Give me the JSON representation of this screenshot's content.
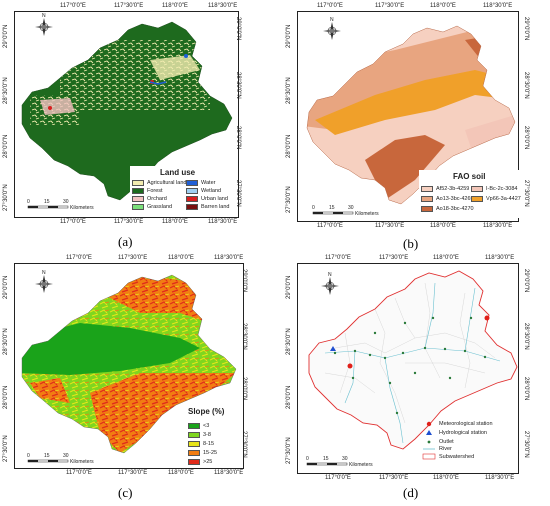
{
  "panels": [
    {
      "label": "(a)",
      "top_ticks": [
        "117°0'0\"E",
        "117°30'0\"E",
        "118°0'0\"E",
        "118°30'0\"E"
      ],
      "left_ticks": [
        "29°0'0\"N",
        "28°30'0\"N",
        "28°0'0\"N",
        "27°30'0\"N"
      ],
      "legend_title": "Land use",
      "legend_items": [
        {
          "label": "Agricultural land",
          "color": "#f3ecb0"
        },
        {
          "label": "Water",
          "color": "#1f5fd6"
        },
        {
          "label": "Forest",
          "color": "#1e6a1e"
        },
        {
          "label": "Wetland",
          "color": "#9fd0f2"
        },
        {
          "label": "Orchard",
          "color": "#f4c2c2"
        },
        {
          "label": "Urban land",
          "color": "#d81e1e"
        },
        {
          "label": "Grassland",
          "color": "#7be07b"
        },
        {
          "label": "Barren land",
          "color": "#7a1010"
        }
      ]
    },
    {
      "label": "(b)",
      "top_ticks": [
        "117°0'0\"E",
        "117°30'0\"E",
        "118°0'0\"E",
        "118°30'0\"E"
      ],
      "left_ticks": [
        "29°0'0\"N",
        "28°30'0\"N",
        "28°0'0\"N",
        "27°30'0\"N"
      ],
      "legend_title": "FAO  soil",
      "legend_items": [
        {
          "label": "Af52-3b-4259",
          "color": "#f6d0c0"
        },
        {
          "label": "I-Bc-2c-3084",
          "color": "#f3c6b8"
        },
        {
          "label": "Ao13-3bc-4269",
          "color": "#e8a580"
        },
        {
          "label": "Vp66-3a-4427",
          "color": "#f0a02a"
        },
        {
          "label": "Ao18-3bc-4270",
          "color": "#c8673c"
        }
      ]
    },
    {
      "label": "(c)",
      "top_ticks": [
        "117°0'0\"E",
        "117°30'0\"E",
        "118°0'0\"E",
        "118°30'0\"E"
      ],
      "left_ticks": [
        "29°0'0\"N",
        "28°30'0\"N",
        "28°0'0\"N",
        "27°30'0\"N"
      ],
      "legend_title": "Slope (%)",
      "legend_items": [
        {
          "label": "<3",
          "color": "#1aa31a"
        },
        {
          "label": "3-8",
          "color": "#7fd61f"
        },
        {
          "label": "8-15",
          "color": "#e8e51a"
        },
        {
          "label": "15-25",
          "color": "#f27d12"
        },
        {
          "label": ">25",
          "color": "#e02a1a"
        }
      ]
    },
    {
      "label": "(d)",
      "top_ticks": [
        "117°0'0\"E",
        "117°30'0\"E",
        "118°0'0\"E",
        "118°30'0\"E"
      ],
      "left_ticks": [
        "29°0'0\"N",
        "28°30'0\"N",
        "28°0'0\"N",
        "27°30'0\"N"
      ],
      "legend_items": [
        {
          "label": "Meteorological station",
          "color": "#e0201a"
        },
        {
          "label": "Hydrological station",
          "color": "#1f4fd0"
        },
        {
          "label": "Outlet",
          "color": "#2a7a3a"
        },
        {
          "label": "River",
          "color": "#6ac0d0"
        },
        {
          "label": "Subwatershed",
          "color": "#e03030"
        }
      ]
    }
  ],
  "scale_bar": {
    "ticks": [
      "0",
      "15",
      "30"
    ],
    "unit": "Kilometers"
  },
  "north_arrow": {
    "n": "N",
    "s": "S",
    "e": "E",
    "w": "W"
  }
}
